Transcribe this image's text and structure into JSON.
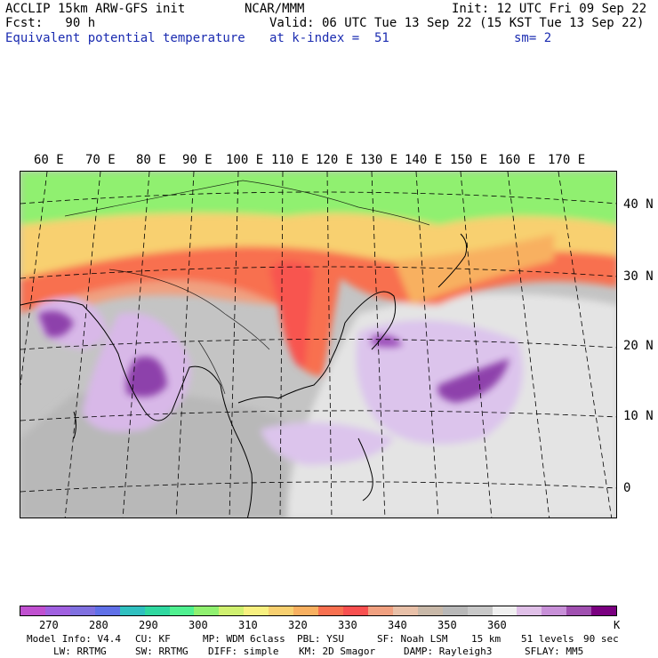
{
  "header": {
    "line1_left": "ACCLIP 15km ARW-GFS init",
    "line1_mid": "NCAR/MMM",
    "line1_right": "Init: 12 UTC Fri 09 Sep 22",
    "line2_left": "Fcst:   90 h",
    "line2_right": "Valid: 06 UTC Tue 13 Sep 22 (15 KST Tue 13 Sep 22)",
    "line3_left": "Equivalent potential temperature",
    "line3_mid": "at k-index =  51",
    "line3_right": "sm= 2"
  },
  "map": {
    "lon_labels": [
      "60 E",
      "70 E",
      "80 E",
      "90 E",
      "100 E",
      "110 E",
      "120 E",
      "130 E",
      "140 E",
      "150 E",
      "160 E",
      "170 E"
    ],
    "lat_labels": [
      "40 N",
      "30 N",
      "20 N",
      "10 N",
      "0"
    ]
  },
  "colorbar": {
    "colors": [
      "#c050d0",
      "#a060e0",
      "#8070e0",
      "#6070e8",
      "#30c0c0",
      "#30d8a0",
      "#50f090",
      "#90f070",
      "#d0f070",
      "#f8f080",
      "#f8d070",
      "#f8b060",
      "#f87050",
      "#f85050",
      "#f0a080",
      "#e8c0a8",
      "#c8b8a8",
      "#b8b8b8",
      "#c8c8c8",
      "#f0f0f0",
      "#e0c0e8",
      "#c890d8",
      "#a050b0",
      "#7a0080"
    ],
    "labels": [
      "270",
      "280",
      "290",
      "300",
      "310",
      "320",
      "330",
      "340",
      "350",
      "360"
    ],
    "unit": "K"
  },
  "footer": {
    "line1": [
      "Model Info: V4.4",
      "CU: KF",
      "MP: WDM 6class",
      "PBL: YSU",
      "SF: Noah LSM",
      "15 km",
      "51 levels",
      "90 sec"
    ],
    "line2": [
      "LW: RRTMG",
      "SW: RRTMG",
      "DIFF: simple",
      "KM: 2D Smagor",
      "DAMP: Rayleigh3",
      "SFLAY: MM5"
    ]
  }
}
